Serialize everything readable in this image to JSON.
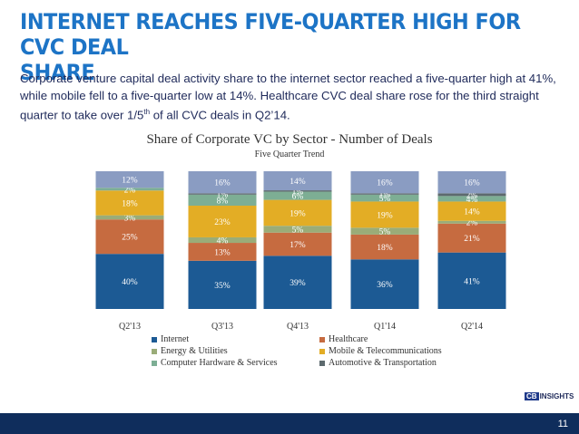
{
  "slide": {
    "title_line1": "INTERNET REACHES FIVE-QUARTER HIGH FOR CVC DEAL",
    "title_line2": "SHARE",
    "subtitle_part1": "Corporate venture capital deal activity share to the internet sector reached a five-quarter high at 41%, while mobile fell to a five-quarter low at 14%. Healthcare CVC deal share rose  for the third straight quarter to take over 1/5",
    "subtitle_sup": "th",
    "subtitle_part2": " of all CVC deals in Q2’14.",
    "page_number": "11",
    "logo_cb": "CB",
    "logo_text": "INSIGHTS",
    "footer_color": "#0f2d5c"
  },
  "chart_data": {
    "type": "bar",
    "stacked": true,
    "percent_stacked": true,
    "title": "Share of Corporate VC by Sector - Number of Deals",
    "subtitle": "Five Quarter Trend",
    "categories": [
      "Q2'13",
      "Q3'13",
      "Q4'13",
      "Q1'14",
      "Q2'14"
    ],
    "series": [
      {
        "name": "Internet",
        "color": "#1c5a94",
        "values": [
          40,
          35,
          39,
          36,
          41
        ]
      },
      {
        "name": "Healthcare",
        "color": "#c66b40",
        "values": [
          25,
          13,
          17,
          18,
          21
        ]
      },
      {
        "name": "Energy & Utilities",
        "color": "#9aac78",
        "values": [
          3,
          4,
          5,
          5,
          2
        ]
      },
      {
        "name": "Mobile & Telecommunications",
        "color": "#e3ad25",
        "values": [
          18,
          23,
          19,
          19,
          14
        ]
      },
      {
        "name": "Computer Hardware & Services",
        "color": "#7dae94",
        "values": [
          2,
          8,
          6,
          5,
          4
        ]
      },
      {
        "name": "Automotive & Transportation",
        "color": "#5d6a6e",
        "values": [
          0,
          1,
          1,
          1,
          2
        ]
      },
      {
        "name": "",
        "color": "#8a9cc2",
        "values": [
          12,
          16,
          14,
          16,
          16
        ]
      }
    ],
    "value_labels": [
      [
        "40%",
        "25%",
        "3%",
        "18%",
        "2%",
        "",
        "12%"
      ],
      [
        "35%",
        "13%",
        "4%",
        "23%",
        "8%",
        "1%",
        "16%"
      ],
      [
        "39%",
        "17%",
        "5%",
        "19%",
        "6%",
        "1%",
        "14%"
      ],
      [
        "36%",
        "18%",
        "5%",
        "19%",
        "5%",
        "1%",
        "16%"
      ],
      [
        "41%",
        "21%",
        "2%",
        "14%",
        "4%",
        "2%",
        "16%"
      ]
    ],
    "ylim": [
      0,
      100
    ],
    "grid": false,
    "legend_position": "bottom"
  }
}
